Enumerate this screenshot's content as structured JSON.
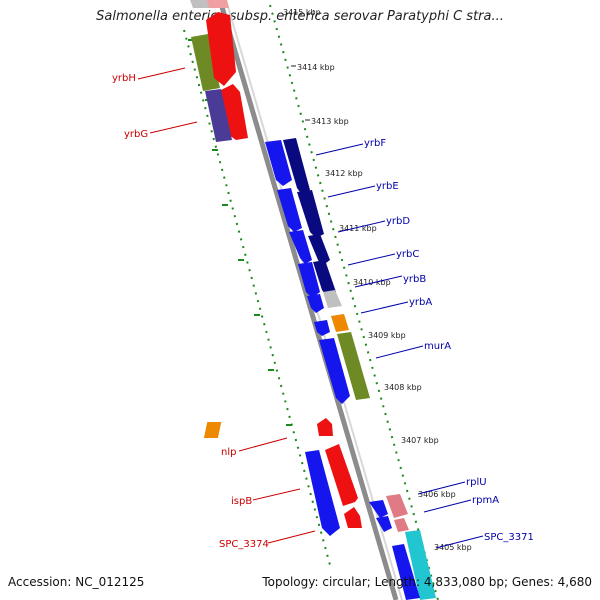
{
  "title": "Salmonella enterica subsp. enterica serovar Paratyphi C stra...",
  "footer": {
    "accession": "Accession: NC_012125",
    "summary": "Topology: circular; Length: 4,833,080 bp; Genes: 4,680"
  },
  "colors": {
    "reverse_strand": "#cc0000",
    "forward_strand": "#0000aa",
    "cds_blue": "#1515ee",
    "cds_navy": "#0a0a80",
    "cds_red": "#ee1111",
    "cds_orange": "#ee8800",
    "cds_olive": "#6e8a25",
    "cds_purple": "#4a3c96",
    "cds_pink": "#e07a84",
    "cds_cyan": "#22c6d0",
    "tick_green": "#1a8a1a",
    "backbone": "#8c8c8c"
  },
  "ticks": [
    "3415 kbp",
    "3414 kbp",
    "3413 kbp",
    "3412 kbp",
    "3411 kbp",
    "3410 kbp",
    "3409 kbp",
    "3408 kbp",
    "3407 kbp",
    "3406 kbp",
    "3405 kbp"
  ],
  "gene_labels": {
    "left": [
      "yrbH",
      "yrbG",
      "nlp",
      "ispB",
      "SPC_3374"
    ],
    "right": [
      "yrbF",
      "yrbE",
      "yrbD",
      "yrbC",
      "yrbB",
      "yrbA",
      "murA",
      "rplU",
      "rpmA",
      "SPC_3371"
    ]
  }
}
